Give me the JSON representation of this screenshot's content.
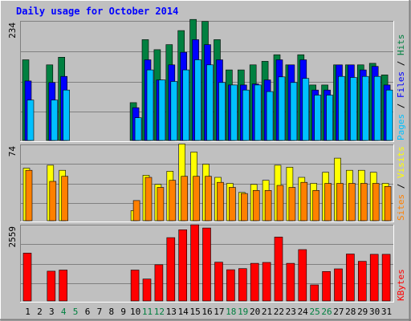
{
  "chart_data": {
    "type": "bar",
    "title": "Daily usage for October 2014",
    "days": [
      "1",
      "2",
      "3",
      "4",
      "5",
      "6",
      "7",
      "8",
      "9",
      "10",
      "11",
      "12",
      "13",
      "14",
      "15",
      "16",
      "17",
      "18",
      "19",
      "20",
      "21",
      "22",
      "23",
      "24",
      "25",
      "26",
      "27",
      "28",
      "29",
      "30",
      "31"
    ],
    "weekend_days": [
      "4",
      "5",
      "11",
      "12",
      "18",
      "19",
      "25",
      "26"
    ],
    "panels": [
      {
        "name": "hits",
        "ymax": 234,
        "ymax_label": "234",
        "side_labels": [
          "Pages",
          "Files",
          "Hits"
        ],
        "series": [
          {
            "name": "Hits",
            "color": "#008040",
            "values": [
              160,
              0,
              150,
              165,
              0,
              0,
              0,
              0,
              0,
              75,
              200,
              180,
              190,
              218,
              240,
              236,
              200,
              140,
              140,
              150,
              157,
              170,
              150,
              170,
              110,
              110,
              150,
              150,
              150,
              153,
              130
            ]
          },
          {
            "name": "Files",
            "color": "#0000ff",
            "values": [
              118,
              0,
              115,
              127,
              0,
              0,
              0,
              0,
              0,
              65,
              160,
              120,
              150,
              175,
              200,
              190,
              160,
              110,
              110,
              112,
              120,
              160,
              150,
              160,
              100,
              100,
              150,
              150,
              140,
              147,
              110
            ]
          },
          {
            "name": "Pages",
            "color": "#00c0ff",
            "values": [
              80,
              0,
              80,
              100,
              0,
              0,
              0,
              0,
              0,
              45,
              140,
              120,
              117,
              140,
              160,
              150,
              115,
              110,
              100,
              110,
              97,
              126,
              115,
              123,
              90,
              90,
              127,
              125,
              127,
              127,
              100
            ]
          }
        ]
      },
      {
        "name": "visits",
        "ymax": 74,
        "ymax_label": "74",
        "side_labels": [
          "Sites",
          "Visits"
        ],
        "series": [
          {
            "name": "Visits",
            "color": "#ffff00",
            "values": [
              52,
              0,
              55,
              50,
              0,
              0,
              0,
              0,
              0,
              10,
              45,
              36,
              49,
              76,
              68,
              56,
              43,
              37,
              28,
              36,
              40,
              55,
              53,
              43,
              37,
              48,
              62,
              50,
              50,
              48,
              37
            ]
          },
          {
            "name": "Sites",
            "color": "#ff8000",
            "values": [
              50,
              0,
              39,
              44,
              0,
              0,
              0,
              0,
              0,
              20,
              43,
              33,
              40,
              44,
              44,
              44,
              38,
              33,
              27,
              30,
              30,
              35,
              33,
              38,
              30,
              37,
              37,
              37,
              37,
              37,
              34
            ]
          }
        ]
      },
      {
        "name": "kbytes",
        "ymax": 2559,
        "ymax_label": "2559",
        "side_labels": [
          "KBytes"
        ],
        "series": [
          {
            "name": "KBytes",
            "color": "#ff0000",
            "values": [
              1640,
              0,
              1020,
              1060,
              0,
              0,
              0,
              0,
              0,
              1060,
              750,
              1240,
              2170,
              2440,
              2610,
              2500,
              1330,
              1070,
              1110,
              1290,
              1320,
              2190,
              1290,
              1760,
              550,
              1010,
              1100,
              1610,
              1360,
              1600,
              1600
            ]
          }
        ]
      }
    ]
  }
}
